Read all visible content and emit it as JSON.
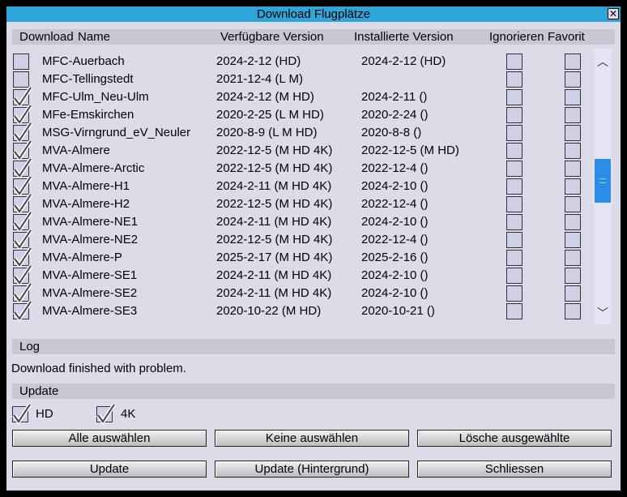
{
  "window": {
    "title": "Download Flugplätze"
  },
  "columns": {
    "download": "Download",
    "name": "Name",
    "available": "Verfügbare Version",
    "installed": "Installierte Version",
    "ignore": "Ignorieren",
    "favorite": "Favorit"
  },
  "rows": [
    {
      "checked": false,
      "name": "MFC-Auerbach",
      "available": "2024-2-12 (HD)",
      "installed": "2024-2-12 (HD)"
    },
    {
      "checked": false,
      "name": "MFC-Tellingstedt",
      "available": "2021-12-4 (L M)",
      "installed": ""
    },
    {
      "checked": true,
      "name": "MFC-Ulm_Neu-Ulm",
      "available": "2024-2-12 (M HD)",
      "installed": "2024-2-11 ()"
    },
    {
      "checked": true,
      "name": "MFe-Emskirchen",
      "available": "2020-2-25 (L M HD)",
      "installed": "2020-2-24 ()"
    },
    {
      "checked": true,
      "name": "MSG-Virngrund_eV_Neuler",
      "available": "2020-8-9 (L M HD)",
      "installed": "2020-8-8 ()"
    },
    {
      "checked": true,
      "name": "MVA-Almere",
      "available": "2022-12-5 (M HD 4K)",
      "installed": "2022-12-5 (M HD)"
    },
    {
      "checked": true,
      "name": "MVA-Almere-Arctic",
      "available": "2022-12-5 (M HD 4K)",
      "installed": "2022-12-4 ()"
    },
    {
      "checked": true,
      "name": "MVA-Almere-H1",
      "available": "2024-2-11 (M HD 4K)",
      "installed": "2024-2-10 ()"
    },
    {
      "checked": true,
      "name": "MVA-Almere-H2",
      "available": "2022-12-5 (M HD 4K)",
      "installed": "2022-12-4 ()"
    },
    {
      "checked": true,
      "name": "MVA-Almere-NE1",
      "available": "2024-2-11 (M HD 4K)",
      "installed": "2024-2-10 ()"
    },
    {
      "checked": true,
      "name": "MVA-Almere-NE2",
      "available": "2022-12-5 (M HD 4K)",
      "installed": "2022-12-4 ()"
    },
    {
      "checked": true,
      "name": "MVA-Almere-P",
      "available": "2025-2-17 (M HD 4K)",
      "installed": "2025-2-16 ()"
    },
    {
      "checked": true,
      "name": "MVA-Almere-SE1",
      "available": "2024-2-11 (M HD 4K)",
      "installed": "2024-2-10 ()"
    },
    {
      "checked": true,
      "name": "MVA-Almere-SE2",
      "available": "2024-2-11 (M HD 4K)",
      "installed": "2024-2-10 ()"
    },
    {
      "checked": true,
      "name": "MVA-Almere-SE3",
      "available": "2020-10-22 (M HD)",
      "installed": "2020-10-21 ()"
    }
  ],
  "log": {
    "header": "Log",
    "message": "Download finished with problem."
  },
  "update": {
    "header": "Update",
    "hd_label": "HD",
    "hd_checked": true,
    "k4_label": "4K",
    "k4_checked": true
  },
  "buttons": {
    "select_all": "Alle auswählen",
    "select_none": "Keine auswählen",
    "delete_selected": "Lösche ausgewählte",
    "update": "Update",
    "update_bg": "Update (Hintergrund)",
    "close": "Schliessen"
  }
}
